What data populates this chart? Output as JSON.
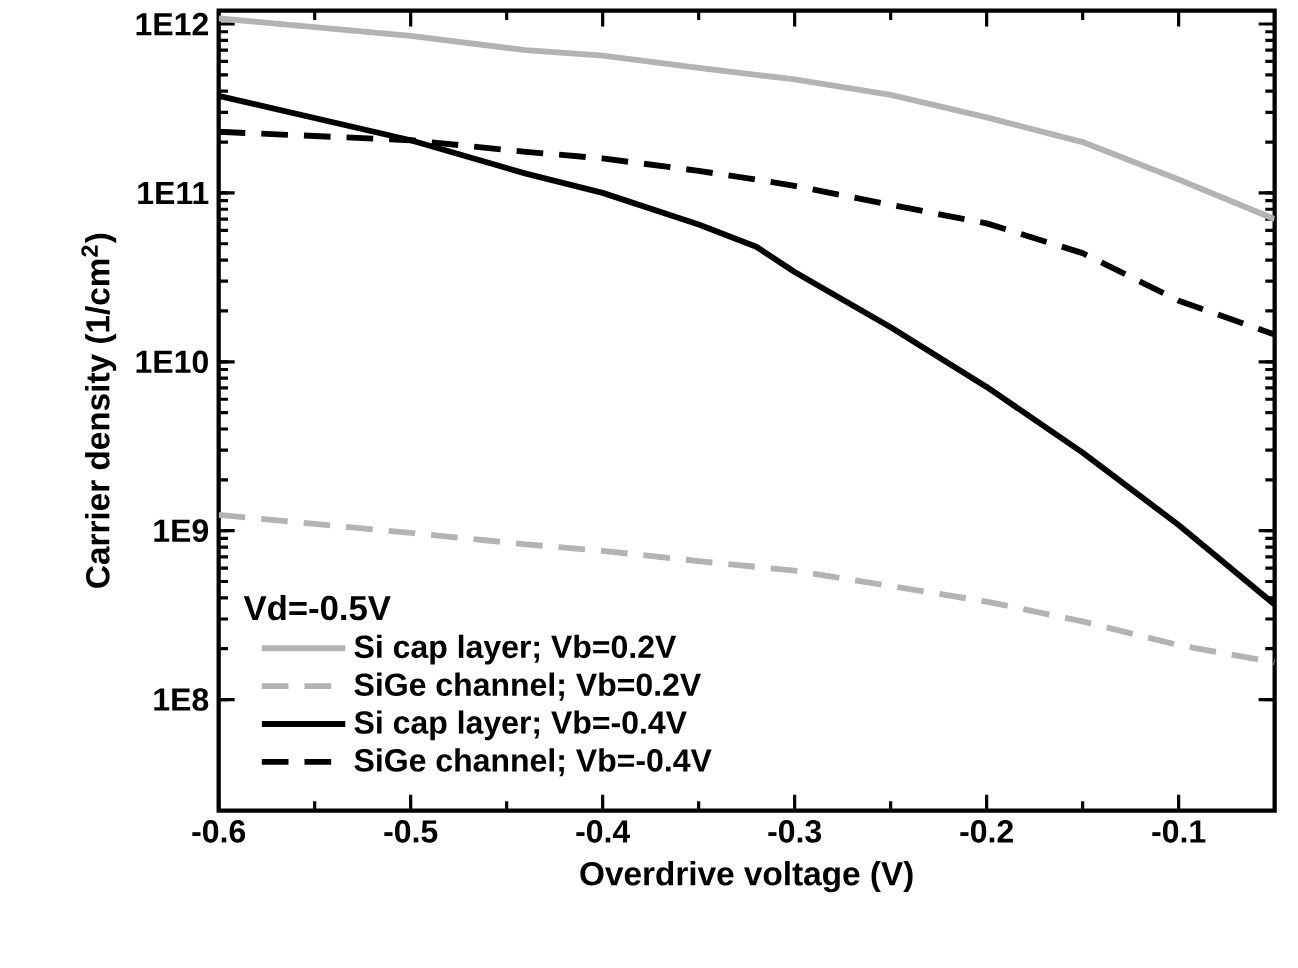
{
  "chart_data": {
    "type": "line",
    "xlabel": "Overdrive voltage (V)",
    "ylabel": "Carrier density (1/cm$^{2}$)",
    "legend_title": "Vd=-0.5V",
    "legend": "bottom left",
    "log": "y",
    "xlim": [
      -0.6,
      -0.05
    ],
    "xticks": [
      -0.6,
      -0.5,
      -0.4,
      -0.3,
      -0.2,
      -0.1
    ],
    "ylim": [
      22000000.0,
      1200000000000.0
    ],
    "yticks": [
      {
        "value": 100000000.0,
        "label": "1E8"
      },
      {
        "value": 1000000000.0,
        "label": "1E9"
      },
      {
        "value": 10000000000.0,
        "label": "1E10"
      },
      {
        "value": 100000000000.0,
        "label": "1E11"
      },
      {
        "value": 1000000000000.0,
        "label": "1E12"
      }
    ],
    "x": [
      -0.6,
      -0.5,
      -0.44,
      -0.4,
      -0.35,
      -0.32,
      -0.3,
      -0.25,
      -0.2,
      -0.15,
      -0.1,
      -0.05
    ],
    "series": [
      {
        "name": "Si cap layer; Vb=0.2V",
        "color": "#b3b3b3",
        "line_style": "solid",
        "values": [
          1080000000000.0,
          850000000000.0,
          700000000000.0,
          650000000000.0,
          550000000000.0,
          500000000000.0,
          470000000000.0,
          380000000000.0,
          280000000000.0,
          200000000000.0,
          120000000000.0,
          70000000000.0
        ]
      },
      {
        "name": "SiGe channel; Vb=0.2V",
        "color": "#b3b3b3",
        "line_style": "dashed",
        "values": [
          1240000000.0,
          970000000.0,
          830000000.0,
          760000000.0,
          660000000.0,
          610000000.0,
          580000000.0,
          470000000.0,
          380000000.0,
          290000000.0,
          210000000.0,
          166000000.0
        ]
      },
      {
        "name": "Si cap layer; Vb=-0.4V",
        "color": "#000000",
        "line_style": "solid",
        "values": [
          375000000000.0,
          205000000000.0,
          130000000000.0,
          100000000000.0,
          65000000000.0,
          48000000000.0,
          34000000000.0,
          16000000000.0,
          7100000000.0,
          2900000000.0,
          1080000000.0,
          365000000.0
        ]
      },
      {
        "name": "SiGe channel; Vb=-0.4V",
        "color": "#000000",
        "line_style": "dashed",
        "values": [
          230000000000.0,
          205000000000.0,
          175000000000.0,
          160000000000.0,
          135000000000.0,
          120000000000.0,
          110000000000.0,
          85000000000.0,
          66000000000.0,
          44000000000.0,
          23000000000.0,
          14500000000.0
        ]
      }
    ]
  }
}
